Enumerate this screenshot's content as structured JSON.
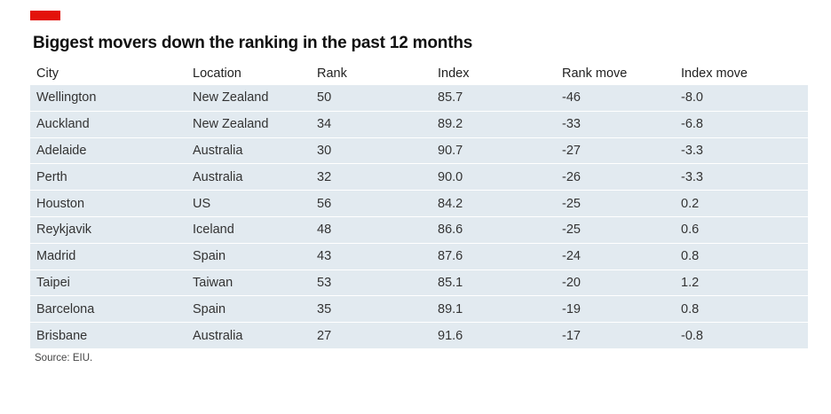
{
  "accent_color": "#e3120b",
  "title": "Biggest movers down the ranking in the past 12 months",
  "source": "Source: EIU.",
  "chart_data": {
    "type": "table",
    "title": "Biggest movers down the ranking in the past 12 months",
    "columns": [
      "City",
      "Location",
      "Rank",
      "Index",
      "Rank move",
      "Index move"
    ],
    "rows": [
      [
        "Wellington",
        "New Zealand",
        "50",
        "85.7",
        "-46",
        "-8.0"
      ],
      [
        "Auckland",
        "New Zealand",
        "34",
        "89.2",
        "-33",
        "-6.8"
      ],
      [
        "Adelaide",
        "Australia",
        "30",
        "90.7",
        "-27",
        "-3.3"
      ],
      [
        "Perth",
        "Australia",
        "32",
        "90.0",
        "-26",
        "-3.3"
      ],
      [
        "Houston",
        "US",
        "56",
        "84.2",
        "-25",
        "0.2"
      ],
      [
        "Reykjavik",
        "Iceland",
        "48",
        "86.6",
        "-25",
        "0.6"
      ],
      [
        "Madrid",
        "Spain",
        "43",
        "87.6",
        "-24",
        "0.8"
      ],
      [
        "Taipei",
        "Taiwan",
        "53",
        "85.1",
        "-20",
        "1.2"
      ],
      [
        "Barcelona",
        "Spain",
        "35",
        "89.1",
        "-19",
        "0.8"
      ],
      [
        "Brisbane",
        "Australia",
        "27",
        "91.6",
        "-17",
        "-0.8"
      ]
    ]
  }
}
